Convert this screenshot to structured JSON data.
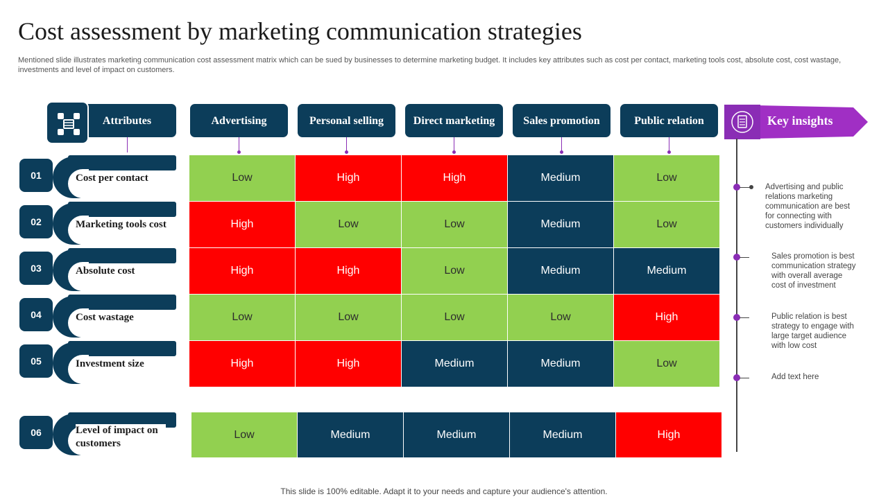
{
  "title": "Cost assessment by marketing communication strategies",
  "subtitle": "Mentioned slide illustrates marketing communication cost assessment matrix which can be sued by businesses to determine marketing budget. It includes key attributes such as cost per contact, marketing tools cost, absolute cost, cost wastage, investments and level of impact on customers.",
  "header": {
    "attributes_label": "Attributes",
    "attributes_icon": "network-diagram-icon",
    "columns": [
      "Advertising",
      "Personal selling",
      "Direct marketing",
      "Sales promotion",
      "Public relation"
    ]
  },
  "rows": [
    {
      "num": "01",
      "label": "Cost per contact",
      "values": [
        "Low",
        "High",
        "High",
        "Medium",
        "Low"
      ]
    },
    {
      "num": "02",
      "label": "Marketing tools cost",
      "values": [
        "High",
        "Low",
        "Low",
        "Medium",
        "Low"
      ]
    },
    {
      "num": "03",
      "label": "Absolute cost",
      "values": [
        "High",
        "High",
        "Low",
        "Medium",
        "Medium"
      ]
    },
    {
      "num": "04",
      "label": "Cost wastage",
      "values": [
        "Low",
        "Low",
        "Low",
        "Low",
        "High"
      ]
    },
    {
      "num": "05",
      "label": "Investment size",
      "values": [
        "High",
        "High",
        "Medium",
        "Medium",
        "Low"
      ]
    },
    {
      "num": "06",
      "label": "Level of impact on customers",
      "values": [
        "Low",
        "Medium",
        "Medium",
        "Medium",
        "High"
      ]
    }
  ],
  "level_colors": {
    "Low": "#92d050",
    "High": "#ff0000",
    "Medium": "#0c3d5a"
  },
  "key_insights": {
    "title": "Key insights",
    "icon": "document-list-icon",
    "accent": "#8a2db5",
    "items": [
      "Advertising and public relations marketing communication are best for connecting with customers individually",
      "Sales promotion is best communication strategy with overall average cost of investment",
      "Public relation is best strategy to engage with large target audience with low cost",
      "Add text here"
    ]
  },
  "footer": "This slide is 100% editable. Adapt it to your needs and capture your audience's attention."
}
